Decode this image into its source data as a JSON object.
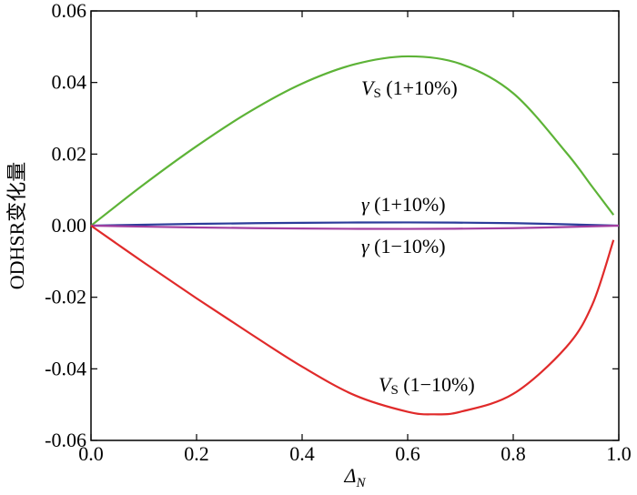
{
  "chart_data": {
    "type": "line",
    "xlabel": "Δ",
    "xlabel_sub": "N",
    "ylabel": "ODHSR变化量",
    "xlim": [
      0.0,
      1.0
    ],
    "ylim": [
      -0.06,
      0.06
    ],
    "xticks": [
      "0.0",
      "0.2",
      "0.4",
      "0.6",
      "0.8",
      "1.0"
    ],
    "yticks": [
      "0.06",
      "0.04",
      "0.02",
      "0.00",
      "-0.02",
      "-0.04",
      "-0.06"
    ],
    "grid": false,
    "series": [
      {
        "name": "V_S (1+10%)",
        "label_main": "V",
        "label_sub": "S",
        "label_rest": " (1+10%)",
        "color": "#5db337",
        "x": [
          0.0,
          0.1,
          0.2,
          0.3,
          0.4,
          0.5,
          0.6,
          0.7,
          0.8,
          0.9,
          0.95,
          0.99
        ],
        "y": [
          0.0,
          0.0115,
          0.0222,
          0.0318,
          0.0397,
          0.0451,
          0.0473,
          0.0452,
          0.037,
          0.0205,
          0.0108,
          0.003
        ]
      },
      {
        "name": "γ (1+10%)",
        "label_main": "γ",
        "label_sub": "",
        "label_rest": " (1+10%)",
        "color": "#2b3c9a",
        "x": [
          0.0,
          0.2,
          0.4,
          0.6,
          0.8,
          1.0
        ],
        "y": [
          0.0,
          0.0005,
          0.0008,
          0.0009,
          0.0007,
          0.0
        ]
      },
      {
        "name": "γ (1−10%)",
        "label_main": "γ",
        "label_sub": "",
        "label_rest": " (1−10%)",
        "color": "#a33ea0",
        "x": [
          0.0,
          0.2,
          0.4,
          0.6,
          0.8,
          1.0
        ],
        "y": [
          0.0,
          -0.0005,
          -0.0008,
          -0.0009,
          -0.0007,
          0.0
        ]
      },
      {
        "name": "V_S (1−10%)",
        "label_main": "V",
        "label_sub": "S",
        "label_rest": " (1−10%)",
        "color": "#e02a2a",
        "x": [
          0.0,
          0.1,
          0.2,
          0.3,
          0.4,
          0.5,
          0.6,
          0.65,
          0.7,
          0.8,
          0.9,
          0.95,
          0.99
        ],
        "y": [
          0.0,
          -0.0103,
          -0.0203,
          -0.03,
          -0.0394,
          -0.0474,
          -0.052,
          -0.0527,
          -0.052,
          -0.047,
          -0.034,
          -0.022,
          -0.004
        ]
      }
    ]
  }
}
